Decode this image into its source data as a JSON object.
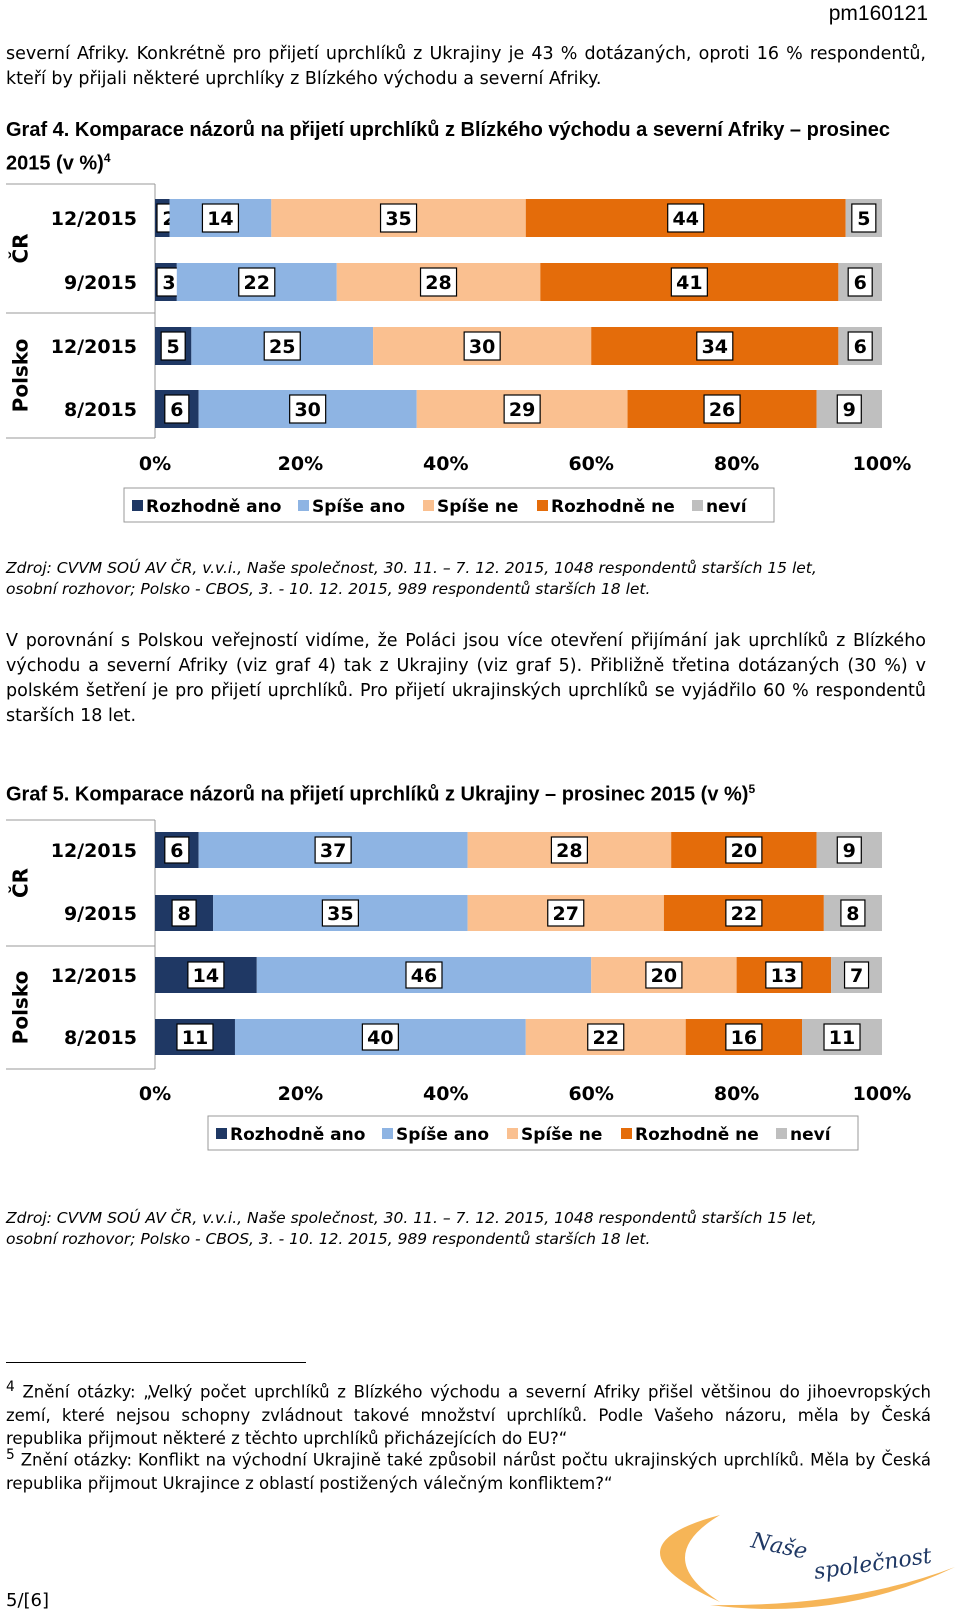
{
  "doc_code": "pm160121",
  "intro_text": "severní Afriky. Konkrétně pro přijetí uprchlíků z Ukrajiny je 43 % dotázaných, oproti 16 % respondentů, kteří by přijali některé uprchlíky z Blízkého východu a severní Afriky.",
  "graph4_title": "Graf 4. Komparace názorů na přijetí uprchlíků z Blízkého východu a severní Afriky – prosinec 2015 (v %)",
  "graph4_sup": "4",
  "graph5_title": "Graf 5. Komparace názorů na přijetí uprchlíků z Ukrajiny – prosinec 2015 (v %)",
  "graph5_sup": "5",
  "source_line1": "Zdroj: CVVM SOÚ AV ČR, v.v.i., Naše společnost, 30. 11. – 7. 12. 2015, 1048 respondentů starších 15 let,",
  "source_line2": "osobní rozhovor; Polsko - CBOS, 3. - 10. 12. 2015, 989 respondentů starších 18 let.",
  "comparison_text": "V porovnání s Polskou veřejností vidíme, že Poláci jsou více otevření přijímání jak uprchlíků z Blízkého východu a severní Afriky (viz graf 4) tak z Ukrajiny (viz graf 5). Přibližně třetina dotázaných (30 %) v polském šetření je pro přijetí uprchlíků. Pro přijetí ukrajinských uprchlíků se vyjádřilo 60 % respondentů starších 18 let.",
  "footnote4_num": "4",
  "footnote4_text": "Znění otázky: „Velký počet uprchlíků z Blízkého východu a severní Afriky přišel většinou do jihoevropských zemí, které nejsou schopny zvládnout takové množství uprchlíků. Podle Vašeho názoru, měla by Česká republika přijmout některé z těchto uprchlíků přicházejících do EU?“",
  "footnote5_num": "5",
  "footnote5_text": "Znění otázky: Konflikt na východní Ukrajině také způsobil nárůst počtu ukrajinských uprchlíků. Měla by Česká republika přijmout Ukrajince z oblastí postižených válečným konfliktem?“",
  "page_number": "5/[6]",
  "logo_text": "Naše společnost",
  "colors": {
    "rozhodne_ano": "#1f3864",
    "spise_ano": "#8eb4e3",
    "spise_ne": "#fac090",
    "rozhodne_ne": "#e46c0a",
    "nevi": "#bfbfbf"
  },
  "chart_data": [
    {
      "type": "bar",
      "stacked": "percent",
      "orientation": "horizontal",
      "groups": [
        "ČR",
        "ČR",
        "Polsko",
        "Polsko"
      ],
      "categories": [
        "12/2015",
        "9/2015",
        "12/2015",
        "8/2015"
      ],
      "series": [
        {
          "name": "Rozhodně ano",
          "values": [
            2,
            3,
            5,
            6
          ]
        },
        {
          "name": "Spíše ano",
          "values": [
            14,
            22,
            25,
            30
          ]
        },
        {
          "name": "Spíše ne",
          "values": [
            35,
            28,
            30,
            29
          ]
        },
        {
          "name": "Rozhodně ne",
          "values": [
            44,
            41,
            34,
            26
          ]
        },
        {
          "name": "neví",
          "values": [
            5,
            6,
            6,
            9
          ]
        }
      ],
      "xlim": [
        0,
        100
      ],
      "xticks": [
        "0%",
        "20%",
        "40%",
        "60%",
        "80%",
        "100%"
      ],
      "legend": "bottom"
    },
    {
      "type": "bar",
      "stacked": "percent",
      "orientation": "horizontal",
      "groups": [
        "ČR",
        "ČR",
        "Polsko",
        "Polsko"
      ],
      "categories": [
        "12/2015",
        "9/2015",
        "12/2015",
        "8/2015"
      ],
      "series": [
        {
          "name": "Rozhodně ano",
          "values": [
            6,
            8,
            14,
            11
          ]
        },
        {
          "name": "Spíše ano",
          "values": [
            37,
            35,
            46,
            40
          ]
        },
        {
          "name": "Spíše ne",
          "values": [
            28,
            27,
            20,
            22
          ]
        },
        {
          "name": "Rozhodně ne",
          "values": [
            20,
            22,
            13,
            16
          ]
        },
        {
          "name": "neví",
          "values": [
            9,
            8,
            7,
            11
          ]
        }
      ],
      "xlim": [
        0,
        100
      ],
      "xticks": [
        "0%",
        "20%",
        "40%",
        "60%",
        "80%",
        "100%"
      ],
      "legend": "bottom"
    }
  ]
}
